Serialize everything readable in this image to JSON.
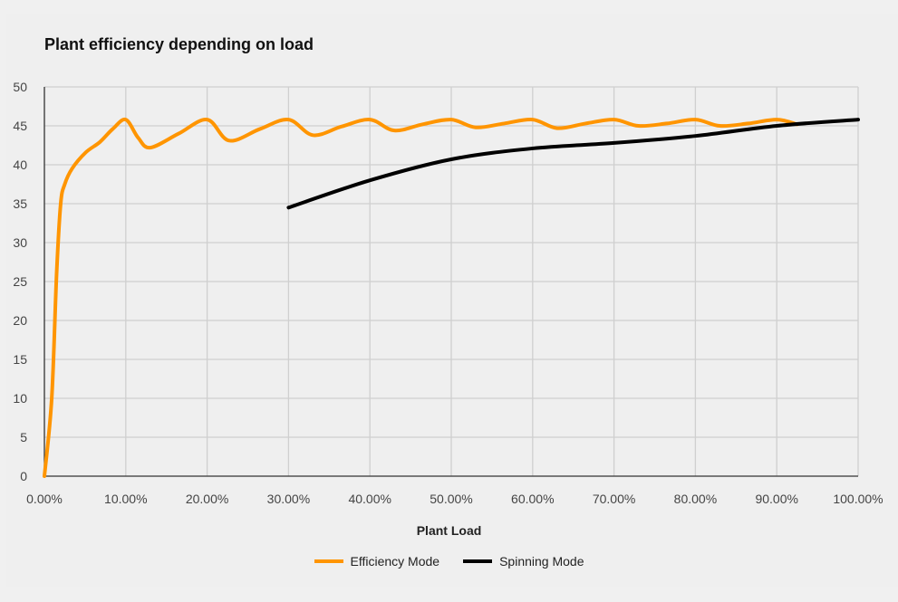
{
  "chart_data": {
    "type": "line",
    "title": "Plant efficiency depending on load",
    "xlabel": "Plant Load",
    "ylabel": "",
    "xlim": [
      0,
      100
    ],
    "ylim": [
      0,
      50
    ],
    "grid": true,
    "legend_position": "bottom",
    "x_ticks": [
      "0.00%",
      "10.00%",
      "20.00%",
      "30.00%",
      "40.00%",
      "50.00%",
      "60.00%",
      "70.00%",
      "80.00%",
      "90.00%",
      "100.00%"
    ],
    "y_ticks": [
      "0",
      "5",
      "10",
      "15",
      "20",
      "25",
      "30",
      "35",
      "40",
      "45",
      "50"
    ],
    "series": [
      {
        "name": "Efficiency Mode",
        "color": "#ff9500",
        "points": [
          [
            0,
            0
          ],
          [
            0.9,
            10
          ],
          [
            1.5,
            26
          ],
          [
            2.0,
            35
          ],
          [
            2.5,
            37.5
          ],
          [
            3.4,
            39.5
          ],
          [
            5.1,
            41.6
          ],
          [
            6.8,
            42.9
          ],
          [
            8.4,
            44.6
          ],
          [
            10,
            45.8
          ],
          [
            11.5,
            43.5
          ],
          [
            13,
            42.2
          ],
          [
            16.5,
            44.0
          ],
          [
            20,
            45.8
          ],
          [
            22.7,
            43.1
          ],
          [
            26.5,
            44.6
          ],
          [
            30,
            45.8
          ],
          [
            33,
            43.8
          ],
          [
            36.5,
            44.9
          ],
          [
            40,
            45.8
          ],
          [
            43,
            44.4
          ],
          [
            46.5,
            45.2
          ],
          [
            50,
            45.8
          ],
          [
            53,
            44.8
          ],
          [
            56.5,
            45.3
          ],
          [
            60,
            45.8
          ],
          [
            63,
            44.7
          ],
          [
            66.5,
            45.3
          ],
          [
            70,
            45.8
          ],
          [
            73,
            45.0
          ],
          [
            76.5,
            45.3
          ],
          [
            80,
            45.8
          ],
          [
            83,
            45.0
          ],
          [
            86.5,
            45.3
          ],
          [
            90,
            45.8
          ],
          [
            92.5,
            45.2
          ]
        ]
      },
      {
        "name": "Spinning Mode",
        "color": "#000000",
        "points": [
          [
            30,
            34.5
          ],
          [
            40,
            38.0
          ],
          [
            50,
            40.7
          ],
          [
            60,
            42.1
          ],
          [
            70,
            42.8
          ],
          [
            80,
            43.7
          ],
          [
            90,
            45.0
          ],
          [
            100,
            45.8
          ]
        ]
      }
    ]
  }
}
